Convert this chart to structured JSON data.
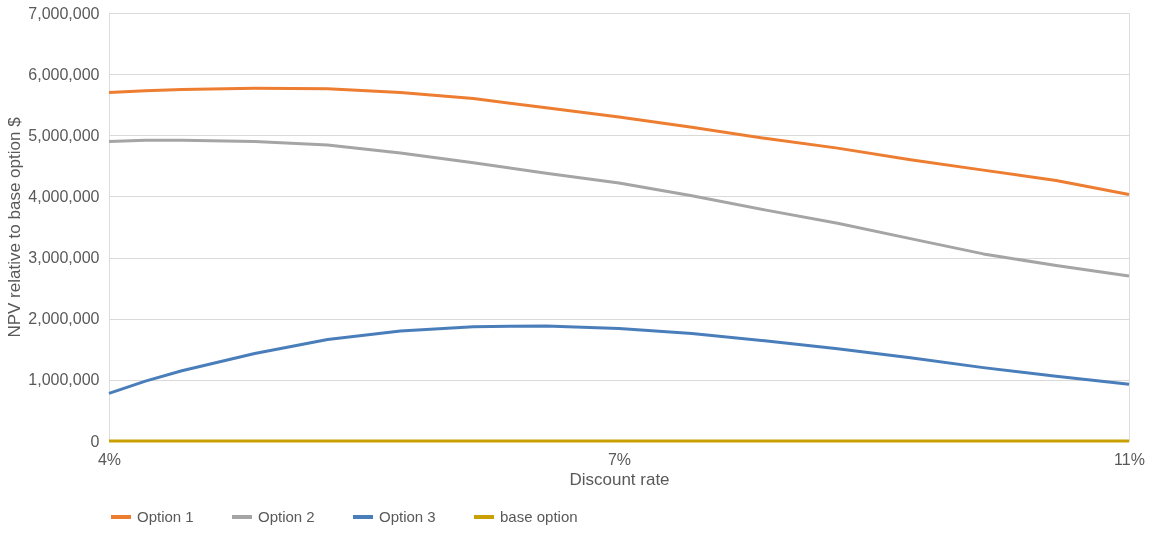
{
  "chart_data": {
    "type": "line",
    "xlabel": "Discount rate",
    "ylabel": "NPV relative to base option $",
    "x": [
      4,
      4.25,
      4.5,
      5,
      5.5,
      6,
      6.5,
      7,
      7.5,
      8,
      8.5,
      9,
      9.5,
      10,
      10.5,
      11
    ],
    "xlim": [
      4,
      11
    ],
    "xticks": [
      {
        "value": 4,
        "label": "4%"
      },
      {
        "value": 7.5,
        "label": "7%"
      },
      {
        "value": 11,
        "label": "11%"
      }
    ],
    "ylim": [
      0,
      7000000
    ],
    "yticks": [
      {
        "value": 0,
        "label": "0"
      },
      {
        "value": 1000000,
        "label": "1,000,000"
      },
      {
        "value": 2000000,
        "label": "2,000,000"
      },
      {
        "value": 3000000,
        "label": "3,000,000"
      },
      {
        "value": 4000000,
        "label": "4,000,000"
      },
      {
        "value": 5000000,
        "label": "5,000,000"
      },
      {
        "value": 6000000,
        "label": "6,000,000"
      },
      {
        "value": 7000000,
        "label": "7,000,000"
      }
    ],
    "series": [
      {
        "name": "Option 1",
        "color": "#ed7d31",
        "values": [
          5700000,
          5730000,
          5750000,
          5770000,
          5760000,
          5700000,
          5600000,
          5450000,
          5300000,
          5130000,
          4950000,
          4790000,
          4600000,
          4430000,
          4260000,
          4030000
        ]
      },
      {
        "name": "Option 2",
        "color": "#a5a5a5",
        "values": [
          4900000,
          4920000,
          4920000,
          4900000,
          4840000,
          4710000,
          4550000,
          4380000,
          4220000,
          4010000,
          3780000,
          3560000,
          3310000,
          3060000,
          2870000,
          2700000
        ]
      },
      {
        "name": "Option 3",
        "color": "#4a7ebb",
        "values": [
          780000,
          980000,
          1150000,
          1430000,
          1660000,
          1800000,
          1870000,
          1880000,
          1840000,
          1760000,
          1640000,
          1510000,
          1360000,
          1200000,
          1060000,
          930000
        ]
      },
      {
        "name": "base option",
        "color": "#c9a000",
        "values": [
          0,
          0,
          0,
          0,
          0,
          0,
          0,
          0,
          0,
          0,
          0,
          0,
          0,
          0,
          0,
          0
        ]
      }
    ],
    "grid": "y",
    "legend": "bottom",
    "marker": "none",
    "line_style": "solid"
  }
}
